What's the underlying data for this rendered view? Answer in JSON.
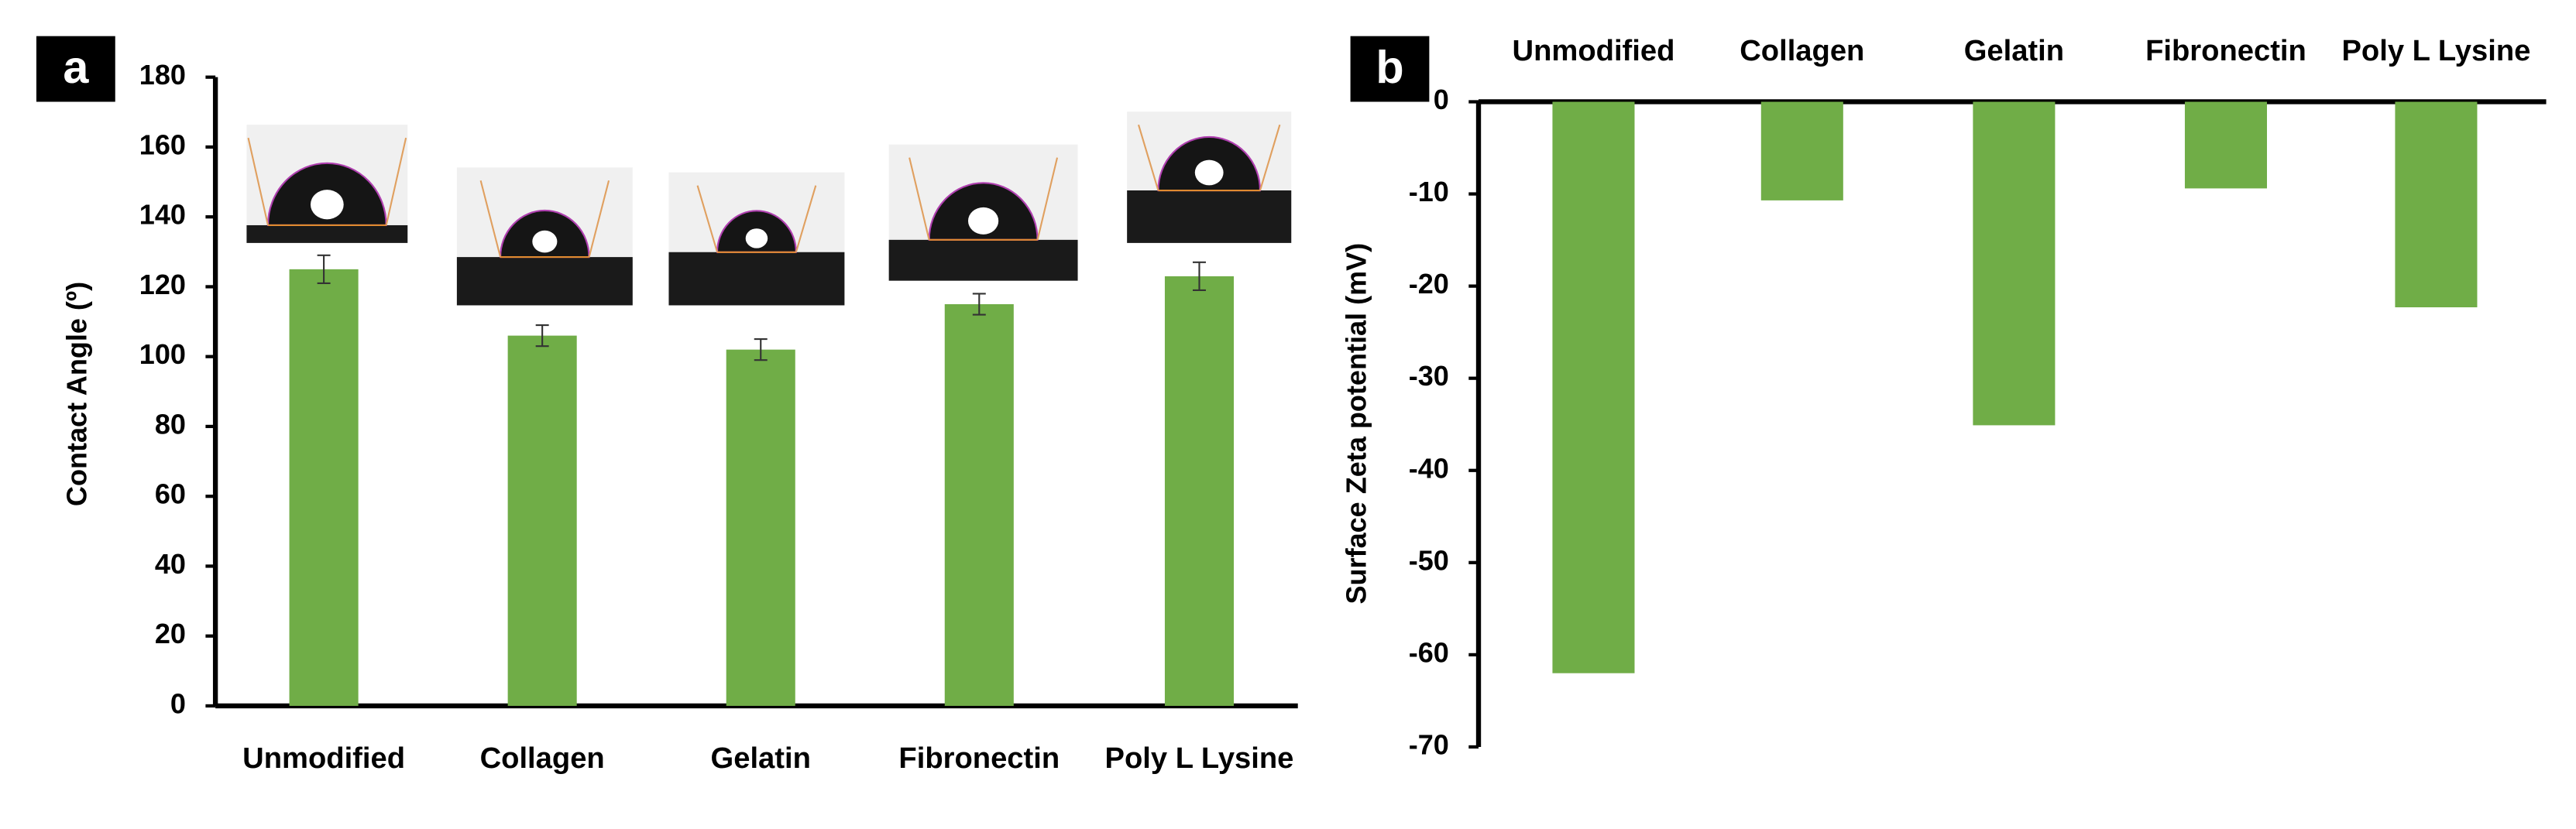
{
  "chart_data": [
    {
      "type": "bar",
      "panel_label": "a",
      "y_label": "Contact Angle (º)",
      "categories": [
        "Unmodified",
        "Collagen",
        "Gelatin",
        "Fibronectin",
        "Poly L Lysine"
      ],
      "values": [
        125,
        106,
        102,
        115,
        123
      ],
      "errors": [
        4,
        3,
        3,
        3,
        4
      ],
      "color": "#70ad47",
      "ylim": [
        0,
        180
      ],
      "yticks": [
        0,
        20,
        40,
        60,
        80,
        100,
        120,
        140,
        160,
        180
      ]
    },
    {
      "type": "bar",
      "panel_label": "b",
      "y_label": "Surface Zeta potential (mV)",
      "categories": [
        "Unmodified",
        "Collagen",
        "Gelatin",
        "Fibronectin",
        "Poly L Lysine"
      ],
      "values": [
        -62,
        -10.7,
        -35.1,
        -9.4,
        -22.3
      ],
      "color": "#70ad47",
      "ylim": [
        -70,
        0
      ],
      "yticks": [
        0,
        -10,
        -20,
        -30,
        -40,
        -50,
        -60,
        -70
      ]
    }
  ]
}
